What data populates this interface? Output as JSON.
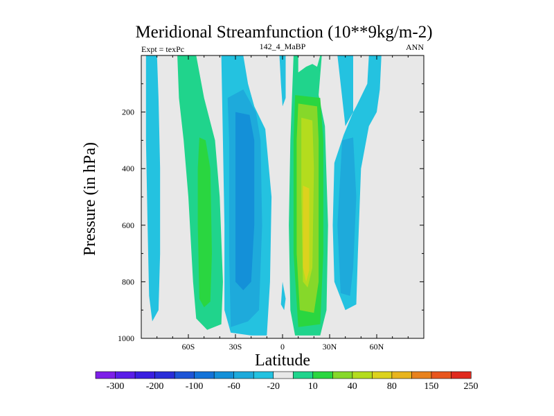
{
  "chart_data": {
    "type": "contour",
    "title": "Meridional Streamfunction (10**9kg/m-2)",
    "subtitle_left": "Expt = texPc",
    "subtitle_center": "142_4_MaBP",
    "subtitle_right": "ANN",
    "xlabel": "Latitude",
    "ylabel": "Pressure (in hPa)",
    "xlim": [
      -90,
      90
    ],
    "ylim": [
      1000,
      0
    ],
    "x_ticks": [
      {
        "value": -60,
        "label": "60S"
      },
      {
        "value": -30,
        "label": "30S"
      },
      {
        "value": 0,
        "label": "0"
      },
      {
        "value": 30,
        "label": "30N"
      },
      {
        "value": 60,
        "label": "60N"
      }
    ],
    "y_ticks": [
      {
        "value": 200,
        "label": "200"
      },
      {
        "value": 400,
        "label": "400"
      },
      {
        "value": 600,
        "label": "600"
      },
      {
        "value": 800,
        "label": "800"
      },
      {
        "value": 1000,
        "label": "1000"
      }
    ],
    "colorbar": {
      "colors": [
        "#7d1fe8",
        "#5a1ee8",
        "#3a1fe0",
        "#2a2ed8",
        "#1e55d6",
        "#1373d8",
        "#1490d8",
        "#1eaadb",
        "#24c2e0",
        "#e8e8e8",
        "#20d48c",
        "#2ad640",
        "#86d82a",
        "#b4dc1e",
        "#dcd21e",
        "#e8b41e",
        "#e8821e",
        "#e8561e",
        "#e02a1e"
      ],
      "labels": [
        "-300",
        "-200",
        "-100",
        "-60",
        "-20",
        "10",
        "40",
        "80",
        "150",
        "250"
      ]
    },
    "regions": [
      {
        "name": "sh-polar-cell-band",
        "color": "#24c2e0",
        "points": [
          [
            -87,
            0
          ],
          [
            -80,
            0
          ],
          [
            -79,
            150
          ],
          [
            -78,
            400
          ],
          [
            -78,
            700
          ],
          [
            -79,
            900
          ],
          [
            -83,
            940
          ],
          [
            -85,
            850
          ],
          [
            -86,
            600
          ],
          [
            -87,
            300
          ]
        ]
      },
      {
        "name": "sh-ferrel-cell-outer",
        "color": "#20d48c",
        "points": [
          [
            -67,
            0
          ],
          [
            -55,
            0
          ],
          [
            -50,
            150
          ],
          [
            -43,
            300
          ],
          [
            -40,
            500
          ],
          [
            -38,
            800
          ],
          [
            -39,
            950
          ],
          [
            -48,
            970
          ],
          [
            -55,
            930
          ],
          [
            -57,
            800
          ],
          [
            -60,
            500
          ],
          [
            -63,
            300
          ],
          [
            -66,
            150
          ]
        ]
      },
      {
        "name": "sh-ferrel-cell-core",
        "color": "#2ad640",
        "points": [
          [
            -53,
            290
          ],
          [
            -49,
            300
          ],
          [
            -46,
            400
          ],
          [
            -45,
            700
          ],
          [
            -46,
            870
          ],
          [
            -50,
            890
          ],
          [
            -53,
            860
          ],
          [
            -54,
            600
          ],
          [
            -54,
            400
          ]
        ]
      },
      {
        "name": "sh-hadley-cell-outer",
        "color": "#24c2e0",
        "points": [
          [
            -39,
            0
          ],
          [
            -25,
            0
          ],
          [
            -22,
            100
          ],
          [
            -18,
            180
          ],
          [
            -11,
            260
          ],
          [
            -7,
            500
          ],
          [
            -8,
            800
          ],
          [
            -10,
            990
          ],
          [
            -20,
            990
          ],
          [
            -33,
            980
          ],
          [
            -37,
            900
          ],
          [
            -37,
            600
          ],
          [
            -38,
            300
          ]
        ]
      },
      {
        "name": "sh-hadley-cell-mid",
        "color": "#1eaadb",
        "points": [
          [
            -35,
            150
          ],
          [
            -25,
            120
          ],
          [
            -17,
            200
          ],
          [
            -14,
            300
          ],
          [
            -13,
            600
          ],
          [
            -15,
            900
          ],
          [
            -22,
            940
          ],
          [
            -33,
            960
          ],
          [
            -34,
            700
          ],
          [
            -34,
            300
          ]
        ]
      },
      {
        "name": "sh-hadley-cell-core",
        "color": "#1490d8",
        "points": [
          [
            -30,
            200
          ],
          [
            -21,
            210
          ],
          [
            -18,
            300
          ],
          [
            -18,
            600
          ],
          [
            -20,
            800
          ],
          [
            -25,
            830
          ],
          [
            -30,
            800
          ]
        ]
      },
      {
        "name": "eq-thin-band-upper",
        "color": "#24c2e0",
        "points": [
          [
            -2,
            0
          ],
          [
            2,
            0
          ],
          [
            2,
            150
          ],
          [
            0,
            180
          ],
          [
            -1,
            100
          ]
        ]
      },
      {
        "name": "eq-thin-band-lower",
        "color": "#24c2e0",
        "points": [
          [
            0,
            800
          ],
          [
            2,
            860
          ],
          [
            1,
            900
          ],
          [
            -1,
            880
          ]
        ]
      },
      {
        "name": "nh-ferrel-cell-outer",
        "color": "#24c2e0",
        "points": [
          [
            35,
            0
          ],
          [
            45,
            0
          ],
          [
            45,
            200
          ],
          [
            39,
            280
          ],
          [
            33,
            380
          ],
          [
            32,
            600
          ],
          [
            33,
            800
          ],
          [
            40,
            900
          ],
          [
            47,
            880
          ],
          [
            48,
            700
          ],
          [
            50,
            400
          ],
          [
            55,
            250
          ],
          [
            60,
            200
          ],
          [
            62,
            120
          ],
          [
            63,
            0
          ],
          [
            55,
            0
          ],
          [
            54,
            100
          ],
          [
            47,
            180
          ],
          [
            40,
            250
          ]
        ]
      },
      {
        "name": "nh-ferrel-cell-core",
        "color": "#1eaadb",
        "points": [
          [
            38,
            300
          ],
          [
            45,
            290
          ],
          [
            47,
            500
          ],
          [
            45,
            750
          ],
          [
            43,
            850
          ],
          [
            37,
            840
          ],
          [
            35,
            600
          ]
        ]
      },
      {
        "name": "nh-hadley-cell-outer",
        "color": "#20d48c",
        "points": [
          [
            7,
            0
          ],
          [
            10,
            0
          ],
          [
            10,
            60
          ],
          [
            15,
            40
          ],
          [
            19,
            30
          ],
          [
            22,
            40
          ],
          [
            24,
            0
          ],
          [
            25,
            0
          ],
          [
            23,
            140
          ],
          [
            27,
            250
          ],
          [
            29,
            600
          ],
          [
            28,
            900
          ],
          [
            24,
            990
          ],
          [
            8,
            990
          ],
          [
            5,
            900
          ],
          [
            4,
            600
          ],
          [
            5,
            300
          ],
          [
            6,
            150
          ]
        ]
      },
      {
        "name": "nh-hadley-cell-mid",
        "color": "#2ad640",
        "points": [
          [
            8,
            140
          ],
          [
            24,
            150
          ],
          [
            26,
            300
          ],
          [
            26,
            700
          ],
          [
            24,
            950
          ],
          [
            10,
            960
          ],
          [
            7,
            700
          ],
          [
            7,
            300
          ]
        ]
      },
      {
        "name": "nh-hadley-cell-inner",
        "color": "#86d82a",
        "points": [
          [
            10,
            170
          ],
          [
            22,
            180
          ],
          [
            23,
            300
          ],
          [
            23,
            800
          ],
          [
            20,
            910
          ],
          [
            11,
            900
          ],
          [
            9,
            700
          ],
          [
            9,
            300
          ]
        ]
      },
      {
        "name": "nh-hadley-cell-core",
        "color": "#b4dc1e",
        "points": [
          [
            12,
            220
          ],
          [
            19,
            230
          ],
          [
            20,
            400
          ],
          [
            19,
            750
          ],
          [
            16,
            820
          ],
          [
            13,
            800
          ],
          [
            12,
            500
          ]
        ]
      },
      {
        "name": "nh-hadley-cell-peak",
        "color": "#dcd21e",
        "points": [
          [
            13,
            460
          ],
          [
            17,
            470
          ],
          [
            17,
            760
          ],
          [
            15,
            800
          ],
          [
            13,
            750
          ]
        ]
      }
    ]
  }
}
